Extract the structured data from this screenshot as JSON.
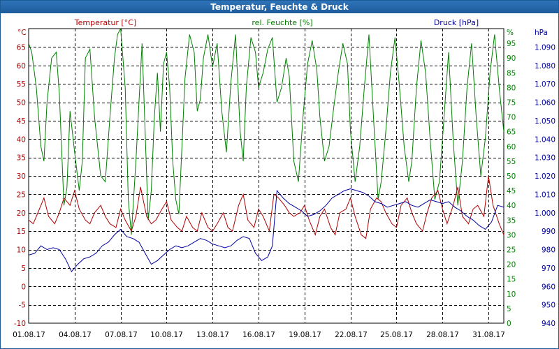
{
  "window": {
    "title": "Temperatur, Feuchte & Druck"
  },
  "colors": {
    "temperature": "#b00000",
    "humidity": "#008000",
    "pressure": "#0000a0",
    "grid": "#000000",
    "title_bar": "#1d5c9c"
  },
  "chart_data": {
    "type": "line",
    "title": "Temperatur, Feuchte & Druck",
    "x": [
      "01.08.17",
      "04.08.17",
      "07.08.17",
      "10.08.17",
      "13.08.17",
      "16.08.17",
      "19.08.17",
      "22.08.17",
      "25.08.17",
      "28.08.17",
      "31.08.17"
    ],
    "x_range_days": [
      1,
      32
    ],
    "grid": true,
    "axes": {
      "temperature": {
        "label": "Temperatur [°C]",
        "unit": "°C",
        "ylim": [
          -10,
          70
        ],
        "ticks": [
          "65",
          "60",
          "55",
          "50",
          "45",
          "40",
          "35",
          "30",
          "25",
          "20",
          "15",
          "10",
          "5",
          "0",
          "-5",
          "-10"
        ]
      },
      "humidity": {
        "label": "rel. Feuchte [%]",
        "unit": "%",
        "ylim": [
          0,
          100
        ],
        "ticks": [
          "95",
          "90",
          "85",
          "80",
          "75",
          "70",
          "65",
          "60",
          "55",
          "50",
          "45",
          "40",
          "35",
          "30",
          "25",
          "20",
          "15",
          "10",
          "5",
          "0"
        ]
      },
      "pressure": {
        "label": "Druck [hPa]",
        "unit": "hPa",
        "ylim": [
          940,
          1100
        ],
        "ticks": [
          "1.090",
          "1.080",
          "1.070",
          "1.060",
          "1.050",
          "1.040",
          "1.030",
          "1.020",
          "1.010",
          "1.000",
          "990",
          "980",
          "970",
          "960",
          "950",
          "940"
        ]
      }
    },
    "series": [
      {
        "name": "Temperatur [°C]",
        "axis": "temperature",
        "points": [
          [
            1.0,
            18
          ],
          [
            1.3,
            17
          ],
          [
            1.7,
            21
          ],
          [
            2.0,
            24
          ],
          [
            2.3,
            19
          ],
          [
            2.7,
            17
          ],
          [
            3.0,
            20
          ],
          [
            3.3,
            24
          ],
          [
            3.7,
            22
          ],
          [
            4.0,
            26
          ],
          [
            4.3,
            21
          ],
          [
            4.7,
            18
          ],
          [
            5.0,
            17
          ],
          [
            5.3,
            20
          ],
          [
            5.7,
            22
          ],
          [
            6.0,
            19
          ],
          [
            6.3,
            17
          ],
          [
            6.7,
            16
          ],
          [
            7.0,
            21
          ],
          [
            7.3,
            18
          ],
          [
            7.7,
            15
          ],
          [
            8.0,
            19
          ],
          [
            8.3,
            27
          ],
          [
            8.7,
            19
          ],
          [
            9.0,
            17
          ],
          [
            9.3,
            18
          ],
          [
            9.7,
            21
          ],
          [
            10.0,
            23
          ],
          [
            10.3,
            18
          ],
          [
            10.7,
            16
          ],
          [
            11.0,
            15
          ],
          [
            11.3,
            19
          ],
          [
            11.7,
            16
          ],
          [
            12.0,
            15
          ],
          [
            12.3,
            20
          ],
          [
            12.7,
            16
          ],
          [
            13.0,
            15
          ],
          [
            13.3,
            17
          ],
          [
            13.7,
            20
          ],
          [
            14.0,
            16
          ],
          [
            14.3,
            15
          ],
          [
            14.7,
            22
          ],
          [
            15.0,
            25
          ],
          [
            15.3,
            18
          ],
          [
            15.7,
            16
          ],
          [
            16.0,
            21
          ],
          [
            16.3,
            19
          ],
          [
            16.7,
            15
          ],
          [
            17.0,
            25
          ],
          [
            17.3,
            24
          ],
          [
            17.7,
            22
          ],
          [
            18.0,
            20
          ],
          [
            18.3,
            19
          ],
          [
            18.7,
            20
          ],
          [
            19.0,
            22
          ],
          [
            19.3,
            18
          ],
          [
            19.7,
            14
          ],
          [
            20.0,
            19
          ],
          [
            20.3,
            21
          ],
          [
            20.7,
            16
          ],
          [
            21.0,
            14
          ],
          [
            21.3,
            20
          ],
          [
            21.7,
            21
          ],
          [
            22.0,
            24
          ],
          [
            22.3,
            19
          ],
          [
            22.7,
            14
          ],
          [
            23.0,
            13
          ],
          [
            23.3,
            21
          ],
          [
            23.7,
            24
          ],
          [
            24.0,
            23
          ],
          [
            24.3,
            20
          ],
          [
            24.7,
            17
          ],
          [
            25.0,
            16
          ],
          [
            25.3,
            22
          ],
          [
            25.7,
            24
          ],
          [
            26.0,
            20
          ],
          [
            26.3,
            17
          ],
          [
            26.7,
            15
          ],
          [
            27.0,
            20
          ],
          [
            27.3,
            24
          ],
          [
            27.7,
            26
          ],
          [
            28.0,
            21
          ],
          [
            28.3,
            17
          ],
          [
            28.7,
            22
          ],
          [
            29.0,
            27
          ],
          [
            29.3,
            19
          ],
          [
            29.7,
            17
          ],
          [
            30.0,
            21
          ],
          [
            30.3,
            22
          ],
          [
            30.7,
            19
          ],
          [
            31.0,
            30
          ],
          [
            31.3,
            22
          ],
          [
            31.7,
            17
          ],
          [
            32.0,
            14
          ]
        ]
      },
      {
        "name": "rel. Feuchte [%]",
        "axis": "humidity",
        "points": [
          [
            1.0,
            95
          ],
          [
            1.2,
            92
          ],
          [
            1.5,
            80
          ],
          [
            1.8,
            60
          ],
          [
            2.0,
            55
          ],
          [
            2.2,
            75
          ],
          [
            2.5,
            90
          ],
          [
            2.8,
            92
          ],
          [
            3.0,
            78
          ],
          [
            3.3,
            40
          ],
          [
            3.5,
            46
          ],
          [
            3.7,
            72
          ],
          [
            4.0,
            58
          ],
          [
            4.3,
            45
          ],
          [
            4.5,
            55
          ],
          [
            4.7,
            90
          ],
          [
            5.0,
            93
          ],
          [
            5.3,
            70
          ],
          [
            5.7,
            50
          ],
          [
            6.0,
            48
          ],
          [
            6.3,
            70
          ],
          [
            6.6,
            90
          ],
          [
            6.8,
            98
          ],
          [
            7.0,
            100
          ],
          [
            7.3,
            80
          ],
          [
            7.5,
            42
          ],
          [
            7.7,
            30
          ],
          [
            8.0,
            55
          ],
          [
            8.2,
            75
          ],
          [
            8.4,
            95
          ],
          [
            8.6,
            65
          ],
          [
            8.8,
            35
          ],
          [
            9.0,
            45
          ],
          [
            9.2,
            70
          ],
          [
            9.4,
            85
          ],
          [
            9.6,
            65
          ],
          [
            9.8,
            88
          ],
          [
            10.0,
            92
          ],
          [
            10.2,
            80
          ],
          [
            10.4,
            55
          ],
          [
            10.6,
            42
          ],
          [
            10.8,
            37
          ],
          [
            11.0,
            60
          ],
          [
            11.2,
            83
          ],
          [
            11.5,
            98
          ],
          [
            11.8,
            92
          ],
          [
            12.0,
            72
          ],
          [
            12.2,
            76
          ],
          [
            12.4,
            90
          ],
          [
            12.7,
            98
          ],
          [
            13.0,
            87
          ],
          [
            13.3,
            95
          ],
          [
            13.6,
            72
          ],
          [
            13.9,
            58
          ],
          [
            14.2,
            82
          ],
          [
            14.5,
            98
          ],
          [
            14.8,
            65
          ],
          [
            15.0,
            55
          ],
          [
            15.2,
            80
          ],
          [
            15.5,
            97
          ],
          [
            15.8,
            92
          ],
          [
            16.0,
            80
          ],
          [
            16.3,
            85
          ],
          [
            16.6,
            93
          ],
          [
            16.9,
            97
          ],
          [
            17.2,
            75
          ],
          [
            17.5,
            80
          ],
          [
            17.8,
            90
          ],
          [
            18.0,
            84
          ],
          [
            18.3,
            55
          ],
          [
            18.6,
            48
          ],
          [
            18.9,
            70
          ],
          [
            19.2,
            88
          ],
          [
            19.5,
            96
          ],
          [
            19.8,
            86
          ],
          [
            20.0,
            70
          ],
          [
            20.3,
            55
          ],
          [
            20.6,
            60
          ],
          [
            20.9,
            73
          ],
          [
            21.2,
            85
          ],
          [
            21.5,
            95
          ],
          [
            21.8,
            88
          ],
          [
            22.0,
            65
          ],
          [
            22.3,
            48
          ],
          [
            22.6,
            60
          ],
          [
            22.9,
            80
          ],
          [
            23.2,
            98
          ],
          [
            23.5,
            70
          ],
          [
            23.8,
            42
          ],
          [
            24.0,
            48
          ],
          [
            24.3,
            65
          ],
          [
            24.6,
            85
          ],
          [
            24.9,
            97
          ],
          [
            25.2,
            80
          ],
          [
            25.5,
            60
          ],
          [
            25.8,
            48
          ],
          [
            26.0,
            55
          ],
          [
            26.3,
            80
          ],
          [
            26.6,
            96
          ],
          [
            26.9,
            85
          ],
          [
            27.2,
            62
          ],
          [
            27.5,
            42
          ],
          [
            27.8,
            48
          ],
          [
            28.1,
            70
          ],
          [
            28.4,
            92
          ],
          [
            28.7,
            62
          ],
          [
            29.0,
            40
          ],
          [
            29.3,
            55
          ],
          [
            29.6,
            80
          ],
          [
            29.9,
            95
          ],
          [
            30.2,
            70
          ],
          [
            30.5,
            50
          ],
          [
            30.8,
            63
          ],
          [
            31.1,
            85
          ],
          [
            31.4,
            98
          ],
          [
            31.7,
            80
          ],
          [
            32.0,
            65
          ]
        ]
      },
      {
        "name": "Druck [hPa]",
        "axis": "pressure",
        "points": [
          [
            1.0,
            977
          ],
          [
            1.4,
            978
          ],
          [
            1.8,
            982
          ],
          [
            2.2,
            980
          ],
          [
            2.6,
            981
          ],
          [
            3.0,
            980
          ],
          [
            3.4,
            975
          ],
          [
            3.8,
            968
          ],
          [
            4.2,
            972
          ],
          [
            4.6,
            975
          ],
          [
            5.0,
            976
          ],
          [
            5.4,
            978
          ],
          [
            5.8,
            982
          ],
          [
            6.2,
            984
          ],
          [
            6.6,
            988
          ],
          [
            7.0,
            991
          ],
          [
            7.4,
            987
          ],
          [
            7.8,
            986
          ],
          [
            8.2,
            984
          ],
          [
            8.6,
            978
          ],
          [
            9.0,
            972
          ],
          [
            9.4,
            974
          ],
          [
            9.8,
            977
          ],
          [
            10.2,
            980
          ],
          [
            10.6,
            982
          ],
          [
            11.0,
            981
          ],
          [
            11.4,
            982
          ],
          [
            11.8,
            984
          ],
          [
            12.2,
            986
          ],
          [
            12.6,
            985
          ],
          [
            13.0,
            983
          ],
          [
            13.4,
            982
          ],
          [
            13.8,
            981
          ],
          [
            14.2,
            982
          ],
          [
            14.6,
            985
          ],
          [
            15.0,
            987
          ],
          [
            15.4,
            986
          ],
          [
            15.8,
            978
          ],
          [
            16.2,
            974
          ],
          [
            16.6,
            976
          ],
          [
            16.9,
            982
          ],
          [
            17.2,
            1012
          ],
          [
            17.6,
            1008
          ],
          [
            18.0,
            1005
          ],
          [
            18.4,
            1003
          ],
          [
            18.8,
            1001
          ],
          [
            19.2,
            998
          ],
          [
            19.6,
            999
          ],
          [
            20.0,
            1001
          ],
          [
            20.4,
            1004
          ],
          [
            20.8,
            1008
          ],
          [
            21.2,
            1010
          ],
          [
            21.6,
            1012
          ],
          [
            22.0,
            1013
          ],
          [
            22.4,
            1012
          ],
          [
            22.8,
            1011
          ],
          [
            23.2,
            1009
          ],
          [
            23.6,
            1006
          ],
          [
            24.0,
            1005
          ],
          [
            24.4,
            1003
          ],
          [
            24.8,
            1004
          ],
          [
            25.2,
            1005
          ],
          [
            25.6,
            1006
          ],
          [
            26.0,
            1004
          ],
          [
            26.4,
            1003
          ],
          [
            26.8,
            1005
          ],
          [
            27.2,
            1007
          ],
          [
            27.6,
            1006
          ],
          [
            28.0,
            1005
          ],
          [
            28.4,
            1006
          ],
          [
            28.8,
            1003
          ],
          [
            29.2,
            1001
          ],
          [
            29.6,
            998
          ],
          [
            30.0,
            996
          ],
          [
            30.4,
            993
          ],
          [
            30.8,
            991
          ],
          [
            31.2,
            995
          ],
          [
            31.6,
            1004
          ],
          [
            32.0,
            1003
          ]
        ]
      }
    ]
  }
}
